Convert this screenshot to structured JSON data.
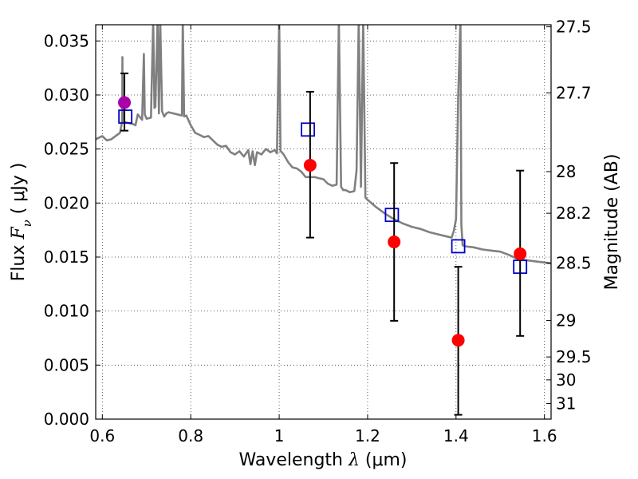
{
  "chart_data": {
    "type": "scatter",
    "xlabel_prefix": "Wavelength  ",
    "xlabel_symbol": "λ",
    "xlabel_suffix": " (μm)",
    "ylabel_prefix": "Flux  ",
    "ylabel_symbol": "F",
    "ylabel_subscript": "ν",
    "ylabel_suffix": " ( μJy )",
    "y2label": "Magnitude (AB)",
    "xlim": [
      0.585,
      1.615
    ],
    "ylim": [
      0.0,
      0.0365
    ],
    "grid": true,
    "colors": {
      "spectrum": "#808080",
      "model_boxes": "#0000cc",
      "observed": "#ff0000",
      "observed_highlight": "#aa00aa",
      "errorbar": "#000000"
    },
    "x_ticks": [
      {
        "value": 0.6,
        "label": "0.6"
      },
      {
        "value": 0.8,
        "label": "0.8"
      },
      {
        "value": 1.0,
        "label": "1"
      },
      {
        "value": 1.2,
        "label": "1.2"
      },
      {
        "value": 1.4,
        "label": "1.4"
      },
      {
        "value": 1.6,
        "label": "1.6"
      }
    ],
    "y_ticks": [
      {
        "value": 0.0,
        "label": "0.000"
      },
      {
        "value": 0.005,
        "label": "0.005"
      },
      {
        "value": 0.01,
        "label": "0.010"
      },
      {
        "value": 0.015,
        "label": "0.015"
      },
      {
        "value": 0.02,
        "label": "0.020"
      },
      {
        "value": 0.025,
        "label": "0.025"
      },
      {
        "value": 0.03,
        "label": "0.030"
      },
      {
        "value": 0.035,
        "label": "0.035"
      }
    ],
    "mag_ticks": [
      {
        "mag": 27.5,
        "label": "27.5"
      },
      {
        "mag": 27.7,
        "label": "27.7"
      },
      {
        "mag": 28.0,
        "label": "28"
      },
      {
        "mag": 28.2,
        "label": "28.2"
      },
      {
        "mag": 28.5,
        "label": "28.5"
      },
      {
        "mag": 29.0,
        "label": "29"
      },
      {
        "mag": 29.5,
        "label": "29.5"
      },
      {
        "mag": 30.0,
        "label": "30"
      },
      {
        "mag": 31.0,
        "label": "31"
      }
    ],
    "observed": [
      {
        "x": 0.65,
        "y": 0.0293,
        "yerr_low": 0.0267,
        "yerr_high": 0.032,
        "highlight": true
      },
      {
        "x": 1.07,
        "y": 0.0235,
        "yerr_low": 0.0168,
        "yerr_high": 0.0303,
        "highlight": false
      },
      {
        "x": 1.26,
        "y": 0.0164,
        "yerr_low": 0.0091,
        "yerr_high": 0.0237,
        "highlight": false
      },
      {
        "x": 1.405,
        "y": 0.0073,
        "yerr_low": 0.0004,
        "yerr_high": 0.0141,
        "highlight": false
      },
      {
        "x": 1.545,
        "y": 0.0153,
        "yerr_low": 0.0077,
        "yerr_high": 0.023,
        "highlight": false
      }
    ],
    "model_boxes": [
      {
        "x": 0.652,
        "y": 0.028
      },
      {
        "x": 1.065,
        "y": 0.0268
      },
      {
        "x": 1.255,
        "y": 0.0189
      },
      {
        "x": 1.405,
        "y": 0.016
      },
      {
        "x": 1.545,
        "y": 0.0141
      }
    ],
    "spectrum": {
      "x": [
        0.585,
        0.6,
        0.61,
        0.62,
        0.63,
        0.64,
        0.645,
        0.6455,
        0.646,
        0.65,
        0.66,
        0.67,
        0.675,
        0.68,
        0.69,
        0.694,
        0.696,
        0.7,
        0.71,
        0.715,
        0.718,
        0.72,
        0.725,
        0.728,
        0.731,
        0.735,
        0.74,
        0.745,
        0.75,
        0.76,
        0.77,
        0.78,
        0.782,
        0.785,
        0.79,
        0.8,
        0.81,
        0.82,
        0.83,
        0.84,
        0.85,
        0.86,
        0.87,
        0.88,
        0.89,
        0.9,
        0.91,
        0.92,
        0.93,
        0.935,
        0.94,
        0.945,
        0.95,
        0.96,
        0.97,
        0.98,
        0.99,
        0.995,
        1.0,
        1.003,
        1.006,
        1.01,
        1.02,
        1.03,
        1.04,
        1.05,
        1.06,
        1.07,
        1.08,
        1.09,
        1.1,
        1.11,
        1.12,
        1.13,
        1.135,
        1.14,
        1.145,
        1.15,
        1.16,
        1.17,
        1.175,
        1.18,
        1.185,
        1.19,
        1.195,
        1.2,
        1.22,
        1.24,
        1.26,
        1.28,
        1.3,
        1.32,
        1.34,
        1.36,
        1.38,
        1.39,
        1.395,
        1.4,
        1.405,
        1.41,
        1.412,
        1.415,
        1.42,
        1.44,
        1.46,
        1.48,
        1.5,
        1.52,
        1.54,
        1.56,
        1.58,
        1.6,
        1.615
      ],
      "y": [
        0.0259,
        0.0262,
        0.0258,
        0.0259,
        0.0262,
        0.0265,
        0.0276,
        0.0335,
        0.0276,
        0.0275,
        0.0274,
        0.0273,
        0.0272,
        0.0282,
        0.0277,
        0.0338,
        0.0282,
        0.0278,
        0.0279,
        0.037,
        0.0288,
        0.0289,
        0.037,
        0.0283,
        0.037,
        0.0285,
        0.028,
        0.0283,
        0.0284,
        0.0283,
        0.0282,
        0.0281,
        0.037,
        0.028,
        0.0281,
        0.0272,
        0.0265,
        0.0263,
        0.0261,
        0.0262,
        0.0258,
        0.0254,
        0.0252,
        0.0253,
        0.0247,
        0.0245,
        0.0248,
        0.0243,
        0.0249,
        0.0236,
        0.0248,
        0.0235,
        0.0247,
        0.0245,
        0.025,
        0.0247,
        0.0249,
        0.0246,
        0.037,
        0.0248,
        0.0247,
        0.0245,
        0.0238,
        0.0233,
        0.0232,
        0.0229,
        0.0224,
        0.0224,
        0.0224,
        0.0223,
        0.0222,
        0.0218,
        0.0216,
        0.0217,
        0.037,
        0.0215,
        0.0212,
        0.0212,
        0.021,
        0.0211,
        0.023,
        0.037,
        0.0215,
        0.037,
        0.0205,
        0.0203,
        0.0196,
        0.019,
        0.0185,
        0.0181,
        0.0178,
        0.0176,
        0.0173,
        0.0171,
        0.0169,
        0.0168,
        0.0174,
        0.0185,
        0.03,
        0.037,
        0.018,
        0.0161,
        0.016,
        0.0159,
        0.0157,
        0.0156,
        0.0155,
        0.0152,
        0.0148,
        0.0147,
        0.0146,
        0.0145,
        0.0144
      ]
    }
  }
}
